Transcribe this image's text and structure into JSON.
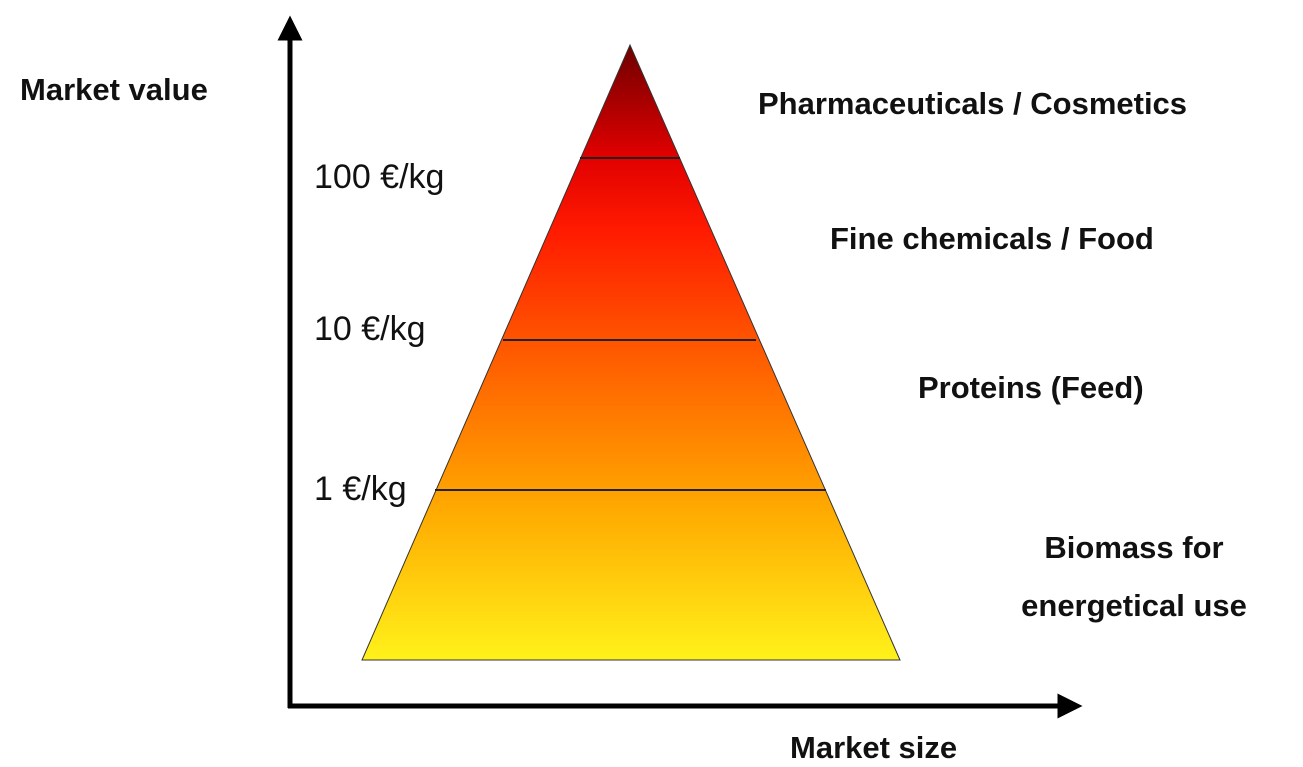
{
  "axes": {
    "y_label": "Market value",
    "x_label": "Market size"
  },
  "price_levels": [
    "100 €/kg",
    "10 €/kg",
    "1 €/kg"
  ],
  "segments": [
    {
      "label": "Pharmaceuticals / Cosmetics"
    },
    {
      "label": "Fine chemicals / Food"
    },
    {
      "label": "Proteins (Feed)"
    },
    {
      "lines": [
        "Biomass for",
        "energetical use"
      ]
    }
  ]
}
